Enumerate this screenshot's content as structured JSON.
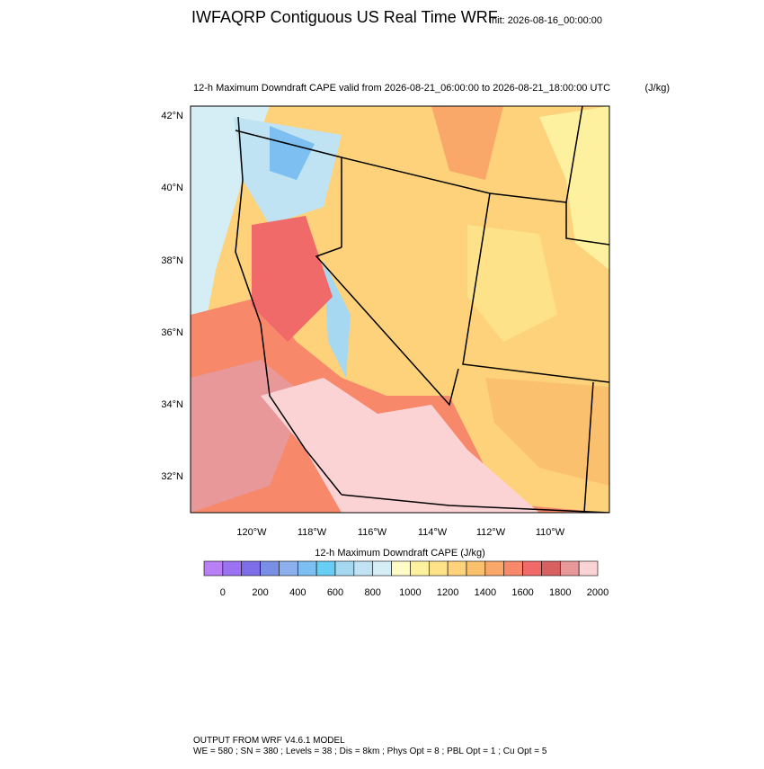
{
  "header": {
    "title": "IWFAQRP Contiguous US Real Time WRF",
    "init": "Init: 2026-08-16_00:00:00"
  },
  "map": {
    "subtitle": "12-h Maximum Downdraft CAPE valid from 2026-08-21_06:00:00 to 2026-08-21_18:00:00 UTC",
    "units": "(J/kg)",
    "lat_labels": [
      "42°N",
      "40°N",
      "38°N",
      "36°N",
      "34°N",
      "32°N"
    ],
    "lon_labels": [
      "120°W",
      "118°W",
      "116°W",
      "114°W",
      "112°W",
      "110°W"
    ]
  },
  "colorbar": {
    "label": "12-h Maximum Downdraft CAPE  (J/kg)",
    "colors": [
      "#b97ff5",
      "#9c72f2",
      "#7d6ee8",
      "#7a8ee6",
      "#8cb0ee",
      "#7cbff0",
      "#68cdf5",
      "#a6d8f2",
      "#bfe3f2",
      "#d5eef5",
      "#fdfbc8",
      "#fdf1a0",
      "#fde28a",
      "#fdd27a",
      "#fbc06e",
      "#f9a86a",
      "#f7886a",
      "#f06a6a",
      "#d96060",
      "#e89898",
      "#fcd3d5"
    ],
    "tick_labels": [
      "0",
      "200",
      "400",
      "600",
      "800",
      "1000",
      "1200",
      "1400",
      "1600",
      "1800",
      "2000"
    ]
  },
  "footer": {
    "lines": [
      "OUTPUT FROM WRF V4.6.1 MODEL",
      "WE = 580 ; SN = 380 ; Levels = 38 ; Dis = 8km ; Phys Opt = 8 ; PBL Opt = 1 ; Cu Opt = 5"
    ]
  }
}
